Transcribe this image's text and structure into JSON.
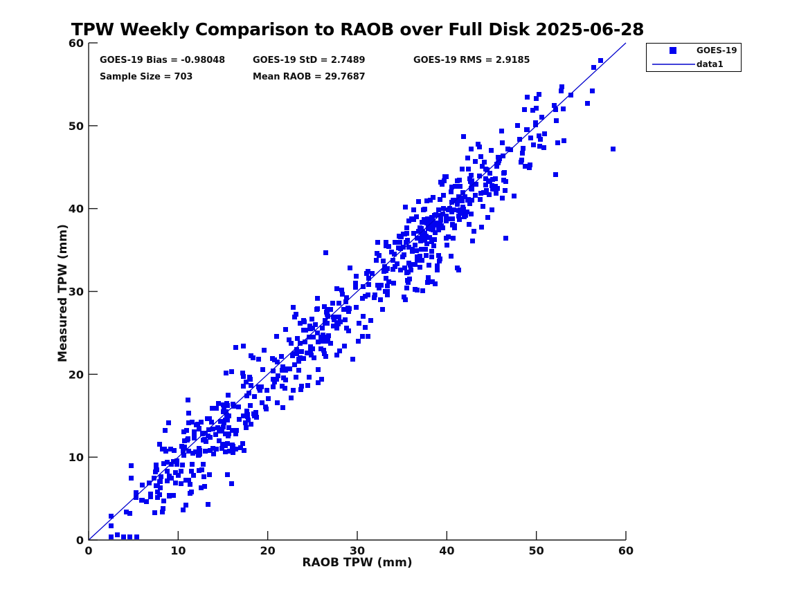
{
  "stats_text": {
    "bias_label": "GOES-19 Bias = -0.98048",
    "std_label": "GOES-19 StD = 2.7489",
    "rms_label": "GOES-19 RMS = 2.9185",
    "sample_label": "Sample Size = 703",
    "mean_raob_label": "Mean RAOB = 29.7687"
  },
  "legend": {
    "items": [
      {
        "label": "GOES-19",
        "marker": "square"
      },
      {
        "label": "data1",
        "marker": "line"
      }
    ]
  },
  "colors": {
    "marker": "#0202f0",
    "line": "#0000cc",
    "axis": "#1a1a1a",
    "text": "#111111",
    "background": "#ffffff"
  },
  "chart_data": {
    "type": "scatter",
    "title": "TPW Weekly Comparison to RAOB over Full Disk 2025-06-28",
    "xlabel": "RAOB TPW (mm)",
    "ylabel": "Measured TPW (mm)",
    "xlim": [
      0,
      60
    ],
    "ylim": [
      0,
      60
    ],
    "xticks": [
      0,
      10,
      20,
      30,
      40,
      50,
      60
    ],
    "yticks": [
      0,
      10,
      20,
      30,
      40,
      50,
      60
    ],
    "grid": false,
    "legend_position": "top-right-outside",
    "stats": {
      "bias": -0.98048,
      "std": 2.7489,
      "rms": 2.9185,
      "sample_size": 703,
      "mean_raob": 29.7687
    },
    "reference_line": {
      "name": "data1",
      "x": [
        0,
        60
      ],
      "y": [
        0,
        60
      ]
    },
    "series": [
      {
        "name": "GOES-19",
        "marker": "filled-square",
        "n": 703,
        "x_range_observed": [
          2.5,
          58.6
        ],
        "bias": -0.98,
        "noise_sd": 2.55,
        "x_mixture": [
          {
            "w": 0.19,
            "mean": 9.5,
            "sd": 2.9
          },
          {
            "w": 0.13,
            "mean": 16.0,
            "sd": 2.6
          },
          {
            "w": 0.16,
            "mean": 24.0,
            "sd": 3.2
          },
          {
            "w": 0.44,
            "mean": 39.0,
            "sd": 5.2
          },
          {
            "w": 0.08,
            "uniform": [
              28,
              58
            ]
          }
        ],
        "anchor_points": [
          [
            57.2,
            57.9
          ],
          [
            58.6,
            47.2
          ],
          [
            55.7,
            52.7
          ],
          [
            52.8,
            54.2
          ],
          [
            50.3,
            53.8
          ],
          [
            48.9,
            49.5
          ],
          [
            16.0,
            6.8
          ],
          [
            26.5,
            34.7
          ],
          [
            17.3,
            23.4
          ],
          [
            16.4,
            23.2
          ],
          [
            11.1,
            16.9
          ],
          [
            41.3,
            32.6
          ],
          [
            29.5,
            21.8
          ],
          [
            35.2,
            29.3
          ],
          [
            2.5,
            2.9
          ]
        ]
      }
    ]
  }
}
